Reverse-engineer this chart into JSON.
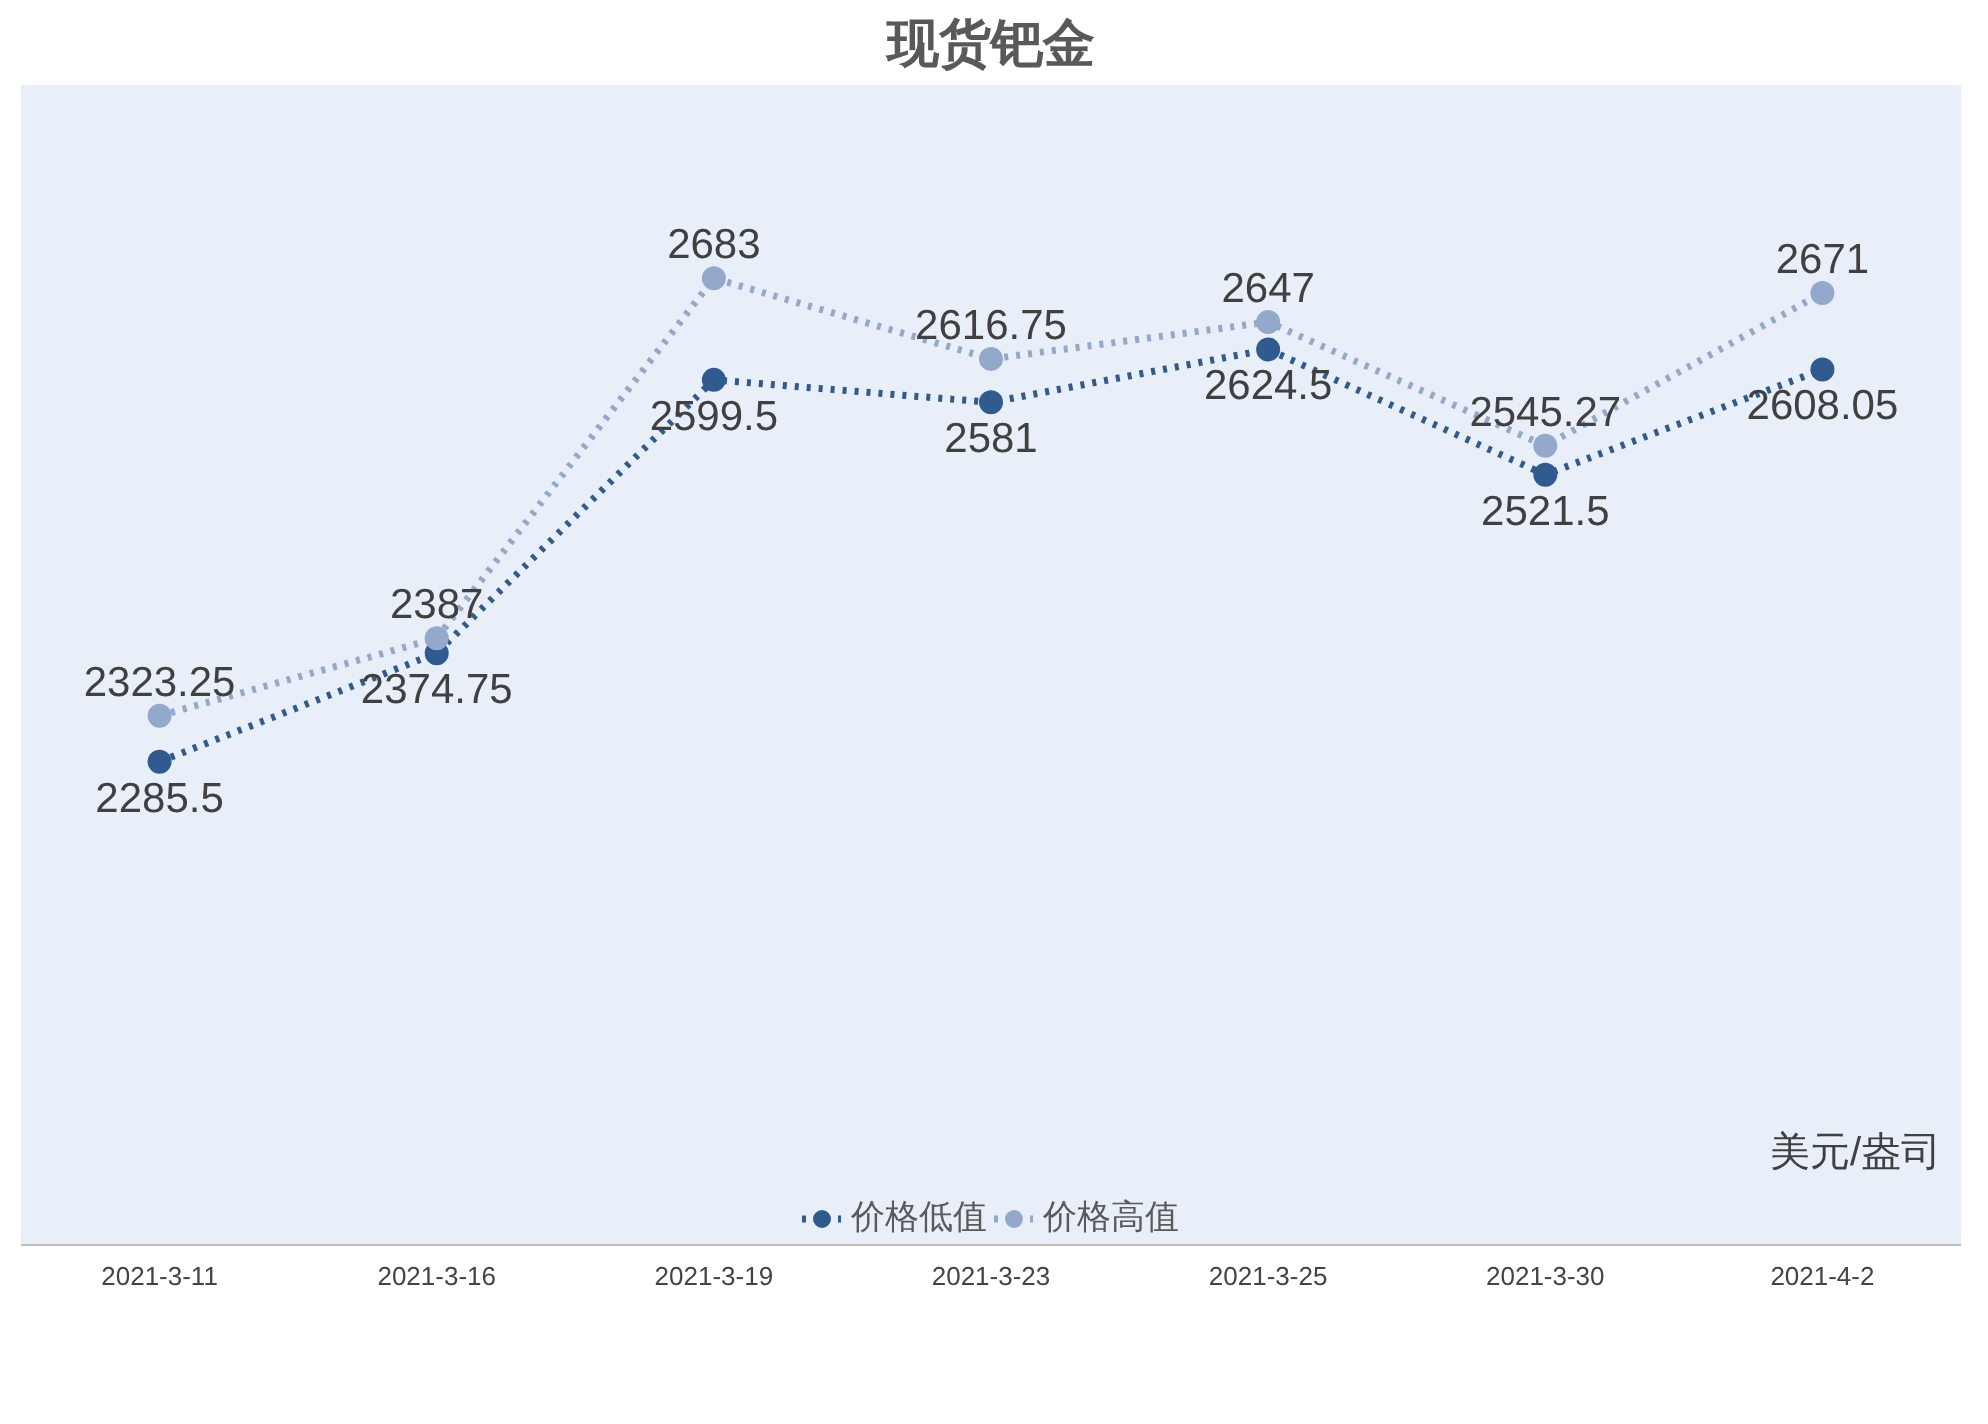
{
  "chart_data": {
    "type": "line",
    "title": "现货钯金",
    "categories": [
      "2021-3-11",
      "2021-3-16",
      "2021-3-19",
      "2021-3-23",
      "2021-3-25",
      "2021-3-30",
      "2021-4-2"
    ],
    "series": [
      {
        "name": "价格低值",
        "color": "#2f5b8f",
        "values": [
          2285.5,
          2374.75,
          2599.5,
          2581,
          2624.5,
          2521.5,
          2608.05
        ]
      },
      {
        "name": "价格高值",
        "color": "#93a9cc",
        "values": [
          2323.25,
          2387,
          2683,
          2616.75,
          2647,
          2545.27,
          2671
        ]
      }
    ],
    "data_labels": true,
    "marker": "circle",
    "line_style": "dotted",
    "legend": "bottom",
    "grid": false,
    "annotations": [
      "美元/盎司"
    ]
  }
}
